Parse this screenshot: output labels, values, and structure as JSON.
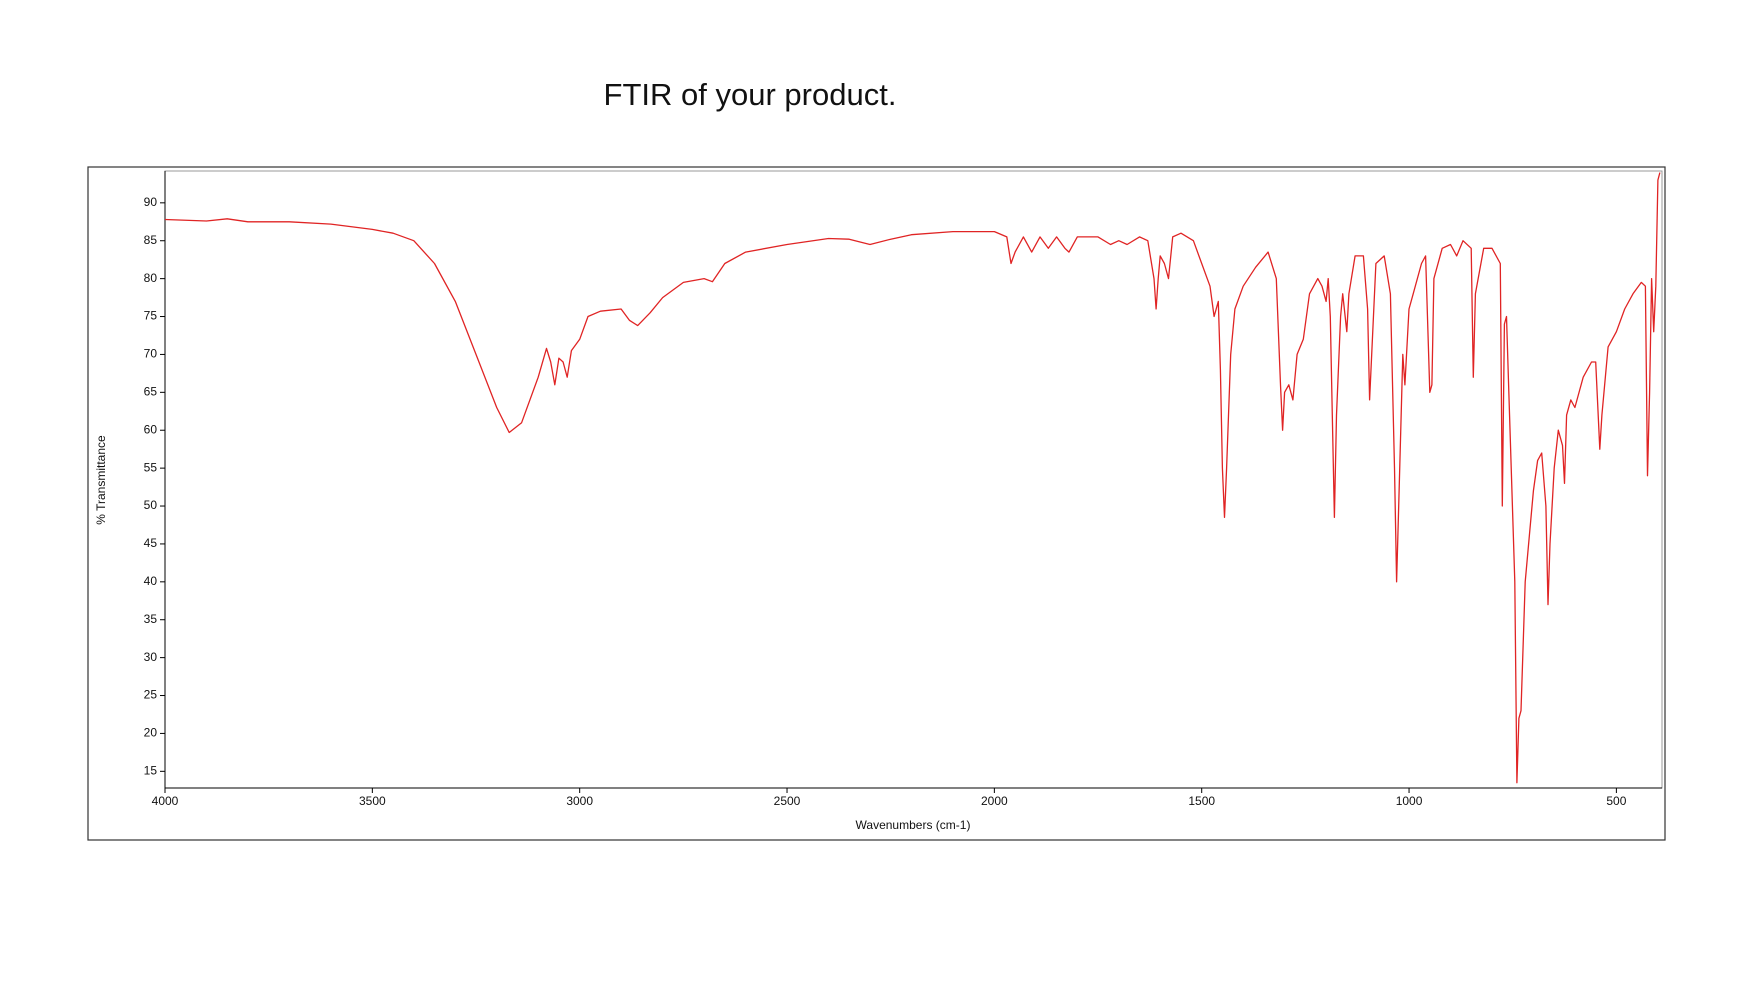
{
  "chart_data": {
    "type": "line",
    "title": "FTIR of your product.",
    "xlabel": "Wavenumbers (cm-1)",
    "ylabel": "% Transmittance",
    "x": [
      4000,
      3900,
      3850,
      3800,
      3700,
      3600,
      3500,
      3450,
      3400,
      3350,
      3300,
      3250,
      3200,
      3170,
      3140,
      3100,
      3080,
      3070,
      3060,
      3050,
      3040,
      3030,
      3020,
      3000,
      2980,
      2950,
      2900,
      2880,
      2860,
      2830,
      2800,
      2750,
      2700,
      2680,
      2650,
      2600,
      2500,
      2400,
      2350,
      2300,
      2250,
      2200,
      2100,
      2000,
      1970,
      1960,
      1950,
      1930,
      1910,
      1890,
      1870,
      1850,
      1830,
      1820,
      1800,
      1750,
      1720,
      1700,
      1680,
      1650,
      1630,
      1615,
      1610,
      1605,
      1600,
      1590,
      1580,
      1570,
      1550,
      1520,
      1500,
      1480,
      1470,
      1460,
      1455,
      1450,
      1445,
      1440,
      1430,
      1420,
      1400,
      1370,
      1340,
      1320,
      1310,
      1305,
      1300,
      1290,
      1280,
      1270,
      1255,
      1240,
      1220,
      1210,
      1200,
      1195,
      1190,
      1185,
      1180,
      1175,
      1165,
      1160,
      1150,
      1145,
      1130,
      1110,
      1100,
      1095,
      1090,
      1080,
      1060,
      1045,
      1035,
      1030,
      1025,
      1015,
      1010,
      1000,
      990,
      970,
      960,
      950,
      945,
      940,
      920,
      900,
      885,
      870,
      850,
      845,
      840,
      820,
      800,
      780,
      775,
      770,
      765,
      760,
      745,
      740,
      735,
      730,
      720,
      710,
      700,
      690,
      680,
      670,
      665,
      660,
      650,
      640,
      630,
      625,
      620,
      610,
      600,
      580,
      560,
      550,
      540,
      535,
      520,
      500,
      480,
      460,
      440,
      430,
      425,
      420,
      415,
      410,
      405,
      400,
      395
    ],
    "series": [
      {
        "color": "#e02424",
        "values": [
          87.8,
          87.6,
          87.9,
          87.5,
          87.5,
          87.2,
          86.5,
          86,
          85,
          82,
          77,
          70,
          63,
          59.7,
          61,
          67,
          70.8,
          69,
          66,
          69.5,
          69,
          67,
          70.5,
          72,
          75,
          75.7,
          76,
          74.5,
          73.8,
          75.5,
          77.5,
          79.5,
          80,
          79.6,
          82,
          83.5,
          84.5,
          85.3,
          85.2,
          84.5,
          85.2,
          85.8,
          86.2,
          86.2,
          85.5,
          82,
          83.5,
          85.5,
          83.5,
          85.5,
          84,
          85.5,
          84,
          83.5,
          85.5,
          85.5,
          84.5,
          85,
          84.5,
          85.5,
          85,
          80,
          76,
          80,
          83,
          82,
          80,
          85.5,
          86,
          85,
          82,
          79,
          75,
          77,
          68,
          55,
          48.5,
          55,
          70,
          76,
          79,
          81.5,
          83.5,
          80,
          66,
          60,
          65,
          66,
          64,
          70,
          72,
          78,
          80,
          79,
          77,
          80,
          75,
          62,
          48.5,
          62,
          75,
          78,
          73,
          78,
          83,
          83,
          76,
          64,
          70,
          82,
          83,
          78,
          55,
          40,
          50,
          70,
          66,
          76,
          78,
          82,
          83,
          65,
          66,
          80,
          84,
          84.5,
          83,
          85,
          84,
          67,
          78,
          84,
          84,
          82,
          50,
          74,
          75,
          66,
          40,
          13.5,
          22,
          23,
          40,
          46,
          52,
          56,
          57,
          50,
          37,
          45,
          55,
          60,
          58,
          53,
          62,
          64,
          63,
          67,
          69,
          69,
          57.5,
          62,
          71,
          73,
          76,
          78,
          79.5,
          79,
          54,
          65,
          80,
          73,
          79,
          93,
          94
        ]
      }
    ],
    "xlim": [
      4000,
      390
    ],
    "ylim": [
      12.8,
      94.2
    ],
    "xticks": [
      4000,
      3500,
      3000,
      2500,
      2000,
      1500,
      1000,
      500
    ],
    "yticks": [
      15,
      20,
      25,
      30,
      35,
      40,
      45,
      50,
      55,
      60,
      65,
      70,
      75,
      80,
      85,
      90
    ]
  }
}
